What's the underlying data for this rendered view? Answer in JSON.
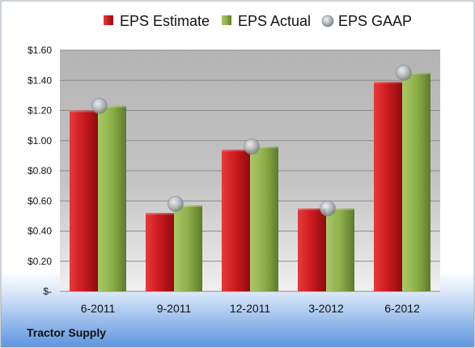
{
  "company": "Tractor Supply",
  "chart_data": {
    "type": "bar",
    "categories": [
      "6-2011",
      "9-2011",
      "12-2011",
      "3-2012",
      "6-2012"
    ],
    "series": [
      {
        "name": "EPS Estimate",
        "kind": "bar",
        "color": "#c8191e",
        "values": [
          1.2,
          0.52,
          0.94,
          0.55,
          1.39
        ]
      },
      {
        "name": "EPS Actual",
        "kind": "bar",
        "color": "#8db04a",
        "values": [
          1.23,
          0.57,
          0.96,
          0.55,
          1.45
        ]
      },
      {
        "name": "EPS GAAP",
        "kind": "marker",
        "color": "#a9adb5",
        "values": [
          1.23,
          0.58,
          0.96,
          0.55,
          1.45
        ]
      }
    ],
    "ylim": [
      0,
      1.6
    ],
    "yticks": [
      0,
      0.2,
      0.4,
      0.6,
      0.8,
      1.0,
      1.2,
      1.4,
      1.6
    ],
    "ytick_labels": [
      "$-",
      "$0.20",
      "$0.40",
      "$0.60",
      "$0.80",
      "$1.00",
      "$1.20",
      "$1.40",
      "$1.60"
    ],
    "grid": true,
    "legend_position": "top"
  }
}
